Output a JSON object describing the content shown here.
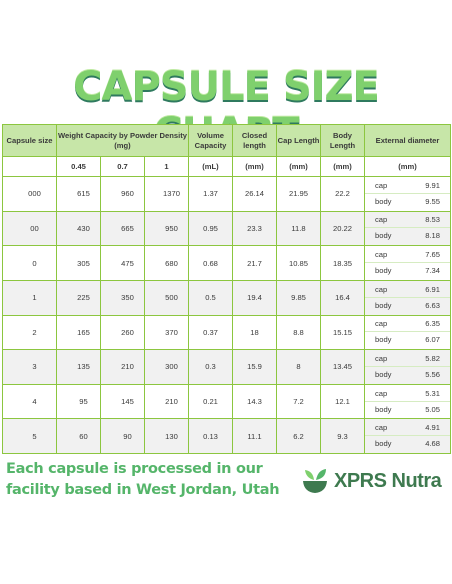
{
  "title": "CAPSULE SIZE CHART",
  "headers": {
    "capsule_size": "Capsule size",
    "weight_capacity": "Weight Capacity by Powder Density (mg)",
    "volume_capacity": "Volume Capacity",
    "closed_length": "Closed length",
    "cap_length": "Cap Length",
    "body_length": "Body Length",
    "external_diameter": "External diameter"
  },
  "subheaders": {
    "density_1": "0.45",
    "density_2": "0.7",
    "density_3": "1",
    "volume_unit": "(mL)",
    "closed_unit": "(mm)",
    "cap_unit": "(mm)",
    "body_unit": "(mm)",
    "diameter_unit": "(mm)"
  },
  "part_labels": {
    "cap": "cap",
    "body": "body"
  },
  "rows": [
    {
      "size": "000",
      "w1": "615",
      "w2": "960",
      "w3": "1370",
      "volume": "1.37",
      "closed": "26.14",
      "cap_len": "21.95",
      "body_len": "22.2",
      "cap_dia": "9.91",
      "body_dia": "9.55"
    },
    {
      "size": "00",
      "w1": "430",
      "w2": "665",
      "w3": "950",
      "volume": "0.95",
      "closed": "23.3",
      "cap_len": "11.8",
      "body_len": "20.22",
      "cap_dia": "8.53",
      "body_dia": "8.18"
    },
    {
      "size": "0",
      "w1": "305",
      "w2": "475",
      "w3": "680",
      "volume": "0.68",
      "closed": "21.7",
      "cap_len": "10.85",
      "body_len": "18.35",
      "cap_dia": "7.65",
      "body_dia": "7.34"
    },
    {
      "size": "1",
      "w1": "225",
      "w2": "350",
      "w3": "500",
      "volume": "0.5",
      "closed": "19.4",
      "cap_len": "9.85",
      "body_len": "16.4",
      "cap_dia": "6.91",
      "body_dia": "6.63"
    },
    {
      "size": "2",
      "w1": "165",
      "w2": "260",
      "w3": "370",
      "volume": "0.37",
      "closed": "18",
      "cap_len": "8.8",
      "body_len": "15.15",
      "cap_dia": "6.35",
      "body_dia": "6.07"
    },
    {
      "size": "3",
      "w1": "135",
      "w2": "210",
      "w3": "300",
      "volume": "0.3",
      "closed": "15.9",
      "cap_len": "8",
      "body_len": "13.45",
      "cap_dia": "5.82",
      "body_dia": "5.56"
    },
    {
      "size": "4",
      "w1": "95",
      "w2": "145",
      "w3": "210",
      "volume": "0.21",
      "closed": "14.3",
      "cap_len": "7.2",
      "body_len": "12.1",
      "cap_dia": "5.31",
      "body_dia": "5.05"
    },
    {
      "size": "5",
      "w1": "60",
      "w2": "90",
      "w3": "130",
      "volume": "0.13",
      "closed": "11.1",
      "cap_len": "6.2",
      "body_len": "9.3",
      "cap_dia": "4.91",
      "body_dia": "4.68"
    }
  ],
  "footer": {
    "line1": "Each capsule is processed in our",
    "line2": "facility based in West Jordan, Utah"
  },
  "brand": {
    "name": "XPRS Nutra",
    "icon": "leaf-bowl-icon"
  },
  "colors": {
    "title": "#7fd06d",
    "header_bg": "#c7e6a8",
    "border": "#8cc63f",
    "footer_text": "#55b56a",
    "brand": "#3e7a4f"
  }
}
